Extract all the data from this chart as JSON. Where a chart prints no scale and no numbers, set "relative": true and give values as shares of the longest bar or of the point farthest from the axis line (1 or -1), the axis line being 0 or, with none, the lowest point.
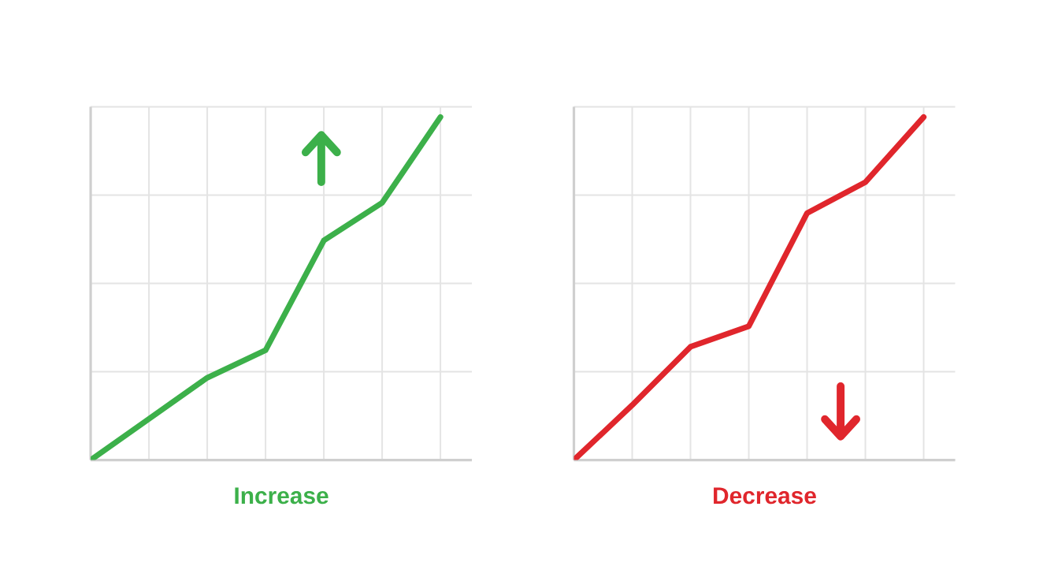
{
  "chart_data": [
    {
      "type": "line",
      "title": "Increase",
      "relative": true,
      "grid": true,
      "marker": "none",
      "line_style": "solid",
      "categories": [
        null,
        null,
        null,
        null,
        null,
        null,
        null
      ],
      "series": [
        {
          "color": "#3cb04a",
          "values": [
            0,
            0.12,
            0.24,
            0.32,
            0.64,
            0.75,
            1
          ]
        }
      ]
    },
    {
      "type": "line",
      "title": "Decrease",
      "relative": true,
      "grid": true,
      "marker": "none",
      "line_style": "solid",
      "categories": [
        null,
        null,
        null,
        null,
        null,
        null,
        null
      ],
      "series": [
        {
          "color": "#e0262c",
          "values": [
            0,
            0.16,
            0.33,
            0.39,
            0.72,
            0.81,
            1
          ]
        }
      ]
    }
  ]
}
